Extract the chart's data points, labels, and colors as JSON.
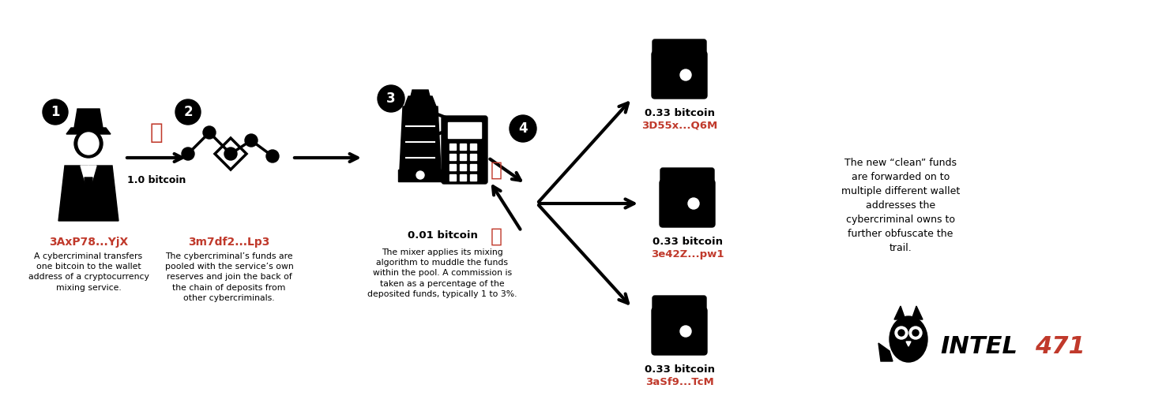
{
  "bg_color": "#ffffff",
  "black": "#000000",
  "red": "#c0392b",
  "step1": {
    "num": "1",
    "address": "3AxP78...YjX",
    "desc": "A cybercriminal transfers\none bitcoin to the wallet\naddress of a cryptocurrency\nmixing service.",
    "arrow_label": "1.0 bitcoin"
  },
  "step2": {
    "num": "2",
    "address": "3m7df2...Lp3",
    "desc": "The cybercriminal’s funds are\npooled with the service’s own\nreserves and join the back of\nthe chain of deposits from\nother cybercriminals."
  },
  "step3": {
    "num": "3",
    "amount": "0.01 bitcoin",
    "desc": "The mixer applies its mixing\nalgorithm to muddle the funds\nwithin the pool. A commission is\ntaken as a percentage of the\ndeposited funds, typically 1 to 3%."
  },
  "step4": {
    "num": "4"
  },
  "wallets": [
    {
      "amount": "0.33 bitcoin",
      "address": "3D55x...Q6M"
    },
    {
      "amount": "0.33 bitcoin",
      "address": "3e42Z...pw1"
    },
    {
      "amount": "0.33 bitcoin",
      "address": "3aSf9...TcM"
    }
  ],
  "final_text": "The new “clean” funds\nare forwarded on to\nmultiple different wallet\naddresses the\ncybercriminal owns to\nfurther obfuscate the\ntrail.",
  "intel_text": "INTEL",
  "intel_num": "471"
}
